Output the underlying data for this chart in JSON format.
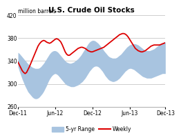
{
  "title": "U.S. Crude Oil Stocks",
  "ylabel": "million barrels",
  "ylim": [
    260,
    420
  ],
  "yticks": [
    260,
    300,
    340,
    380,
    420
  ],
  "xlim": [
    0,
    103
  ],
  "xtick_positions": [
    0,
    26,
    52,
    78,
    103
  ],
  "xtick_labels": [
    "Dec-11",
    "Jun-12",
    "Dec-12",
    "Jun-13",
    "Dec-13"
  ],
  "band_color": "#a8c4e0",
  "line_color": "#dd0000",
  "background_color": "#ffffff",
  "legend_band_label": "5-yr Range",
  "legend_line_label": "Weekly",
  "band_lower": [
    330,
    322,
    315,
    308,
    302,
    296,
    291,
    286,
    283,
    280,
    277,
    275,
    274,
    274,
    275,
    277,
    280,
    283,
    287,
    292,
    297,
    303,
    308,
    312,
    315,
    317,
    318,
    317,
    315,
    312,
    309,
    306,
    303,
    300,
    298,
    297,
    296,
    295,
    295,
    295,
    296,
    297,
    298,
    300,
    302,
    304,
    307,
    310,
    314,
    318,
    322,
    325,
    328,
    330,
    331,
    331,
    330,
    328,
    325,
    322,
    318,
    314,
    311,
    308,
    306,
    305,
    304,
    304,
    305,
    306,
    308,
    310,
    313,
    316,
    319,
    322,
    324,
    326,
    327,
    327,
    326,
    325,
    323,
    321,
    319,
    317,
    315,
    313,
    312,
    311,
    310,
    310,
    310,
    310,
    311,
    312,
    313,
    314,
    315,
    316,
    317,
    318,
    318,
    318
  ],
  "band_upper": [
    355,
    353,
    350,
    347,
    344,
    341,
    338,
    335,
    333,
    331,
    329,
    328,
    327,
    327,
    327,
    328,
    330,
    333,
    336,
    340,
    344,
    348,
    352,
    355,
    357,
    358,
    358,
    357,
    355,
    352,
    349,
    346,
    343,
    340,
    338,
    337,
    336,
    336,
    337,
    338,
    340,
    342,
    344,
    347,
    350,
    354,
    358,
    362,
    366,
    370,
    373,
    375,
    376,
    376,
    375,
    373,
    371,
    368,
    365,
    362,
    358,
    355,
    352,
    349,
    347,
    346,
    345,
    345,
    345,
    346,
    348,
    350,
    352,
    355,
    358,
    361,
    364,
    366,
    368,
    369,
    370,
    370,
    370,
    369,
    368,
    366,
    364,
    362,
    360,
    359,
    358,
    358,
    358,
    359,
    360,
    361,
    363,
    365,
    367,
    369,
    371,
    372,
    373,
    373
  ],
  "weekly_line": [
    338,
    333,
    328,
    323,
    320,
    318,
    320,
    325,
    330,
    336,
    342,
    348,
    354,
    360,
    366,
    370,
    373,
    375,
    376,
    375,
    373,
    372,
    371,
    372,
    374,
    376,
    378,
    379,
    378,
    376,
    373,
    368,
    362,
    356,
    352,
    350,
    350,
    352,
    354,
    356,
    358,
    360,
    362,
    363,
    364,
    364,
    363,
    362,
    360,
    358,
    357,
    356,
    356,
    357,
    358,
    359,
    360,
    361,
    362,
    363,
    364,
    366,
    368,
    370,
    372,
    374,
    376,
    378,
    380,
    382,
    384,
    386,
    387,
    388,
    388,
    387,
    385,
    382,
    378,
    374,
    370,
    366,
    362,
    360,
    358,
    357,
    356,
    356,
    357,
    358,
    360,
    362,
    364,
    366,
    367,
    368,
    368,
    368,
    368,
    368,
    369,
    370,
    371,
    372
  ]
}
